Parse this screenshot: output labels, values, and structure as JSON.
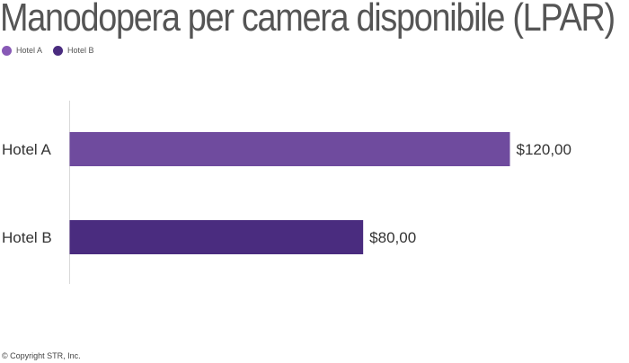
{
  "chart_data": {
    "type": "bar",
    "orientation": "horizontal",
    "title": "Manodopera per camera disponibile (LPAR)",
    "categories": [
      "Hotel A",
      "Hotel B"
    ],
    "values": [
      120,
      80
    ],
    "value_labels": [
      "$120,00",
      "$80,00"
    ],
    "colors": [
      "#6f4b9e",
      "#4a2c7f"
    ],
    "legend": [
      {
        "name": "Hotel A",
        "color": "#8859b6"
      },
      {
        "name": "Hotel B",
        "color": "#4a2c7f"
      }
    ],
    "legend_position": "top-left",
    "xlim": [
      0,
      120
    ],
    "grid": false
  },
  "footer": {
    "copyright": "© Copyright STR, Inc."
  }
}
